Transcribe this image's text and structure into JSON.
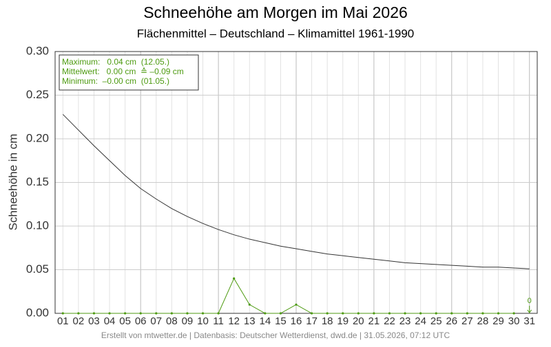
{
  "chart_data": {
    "type": "line",
    "title": "Schneehöhe am Morgen im Mai 2026",
    "subtitle": "Flächenmittel – Deutschland – Klimamittel 1961-1990",
    "y_label": "Schneehöhe in cm",
    "footer": "Erstellt von mtwetter.de | Datenbasis: Deutscher Wetterdienst, dwd.de | 31.05.2026, 07:12 UTC",
    "stats_box": [
      "Maximum:   0.04 cm  (12.05.)",
      "Mittelwert:   0.00 cm  ≙ –0.09 cm",
      "Minimum:  –0.00 cm  (01.05.)"
    ],
    "annotation": "0",
    "categories": [
      "01",
      "02",
      "03",
      "04",
      "05",
      "06",
      "07",
      "08",
      "09",
      "10",
      "11",
      "12",
      "13",
      "14",
      "15",
      "16",
      "17",
      "18",
      "19",
      "20",
      "21",
      "22",
      "23",
      "24",
      "25",
      "26",
      "27",
      "28",
      "29",
      "30",
      "31"
    ],
    "series": [
      {
        "color": "#333333",
        "values": [
          0.228,
          0.21,
          0.192,
          0.175,
          0.158,
          0.143,
          0.131,
          0.12,
          0.111,
          0.103,
          0.096,
          0.09,
          0.085,
          0.081,
          0.077,
          0.074,
          0.071,
          0.068,
          0.066,
          0.064,
          0.062,
          0.06,
          0.058,
          0.057,
          0.056,
          0.055,
          0.054,
          0.053,
          0.053,
          0.052,
          0.051
        ]
      },
      {
        "color": "#4d9a10",
        "values": [
          0,
          0,
          0,
          0,
          0,
          0,
          0,
          0,
          0,
          0,
          0,
          0.04,
          0.01,
          0,
          0,
          0.01,
          0,
          0,
          0,
          0,
          0,
          0,
          0,
          0,
          0,
          0,
          0,
          0,
          0,
          0,
          null
        ]
      }
    ],
    "ylim": [
      0,
      0.3
    ],
    "yticks": [
      {
        "value": 0,
        "label": "0.00"
      },
      {
        "value": 0.05,
        "label": "0.05"
      },
      {
        "value": 0.1,
        "label": "0.10"
      },
      {
        "value": 0.15,
        "label": "0.15"
      },
      {
        "value": 0.2,
        "label": "0.20"
      },
      {
        "value": 0.25,
        "label": "0.25"
      },
      {
        "value": 0.3,
        "label": "0.30"
      }
    ],
    "grid": true
  }
}
